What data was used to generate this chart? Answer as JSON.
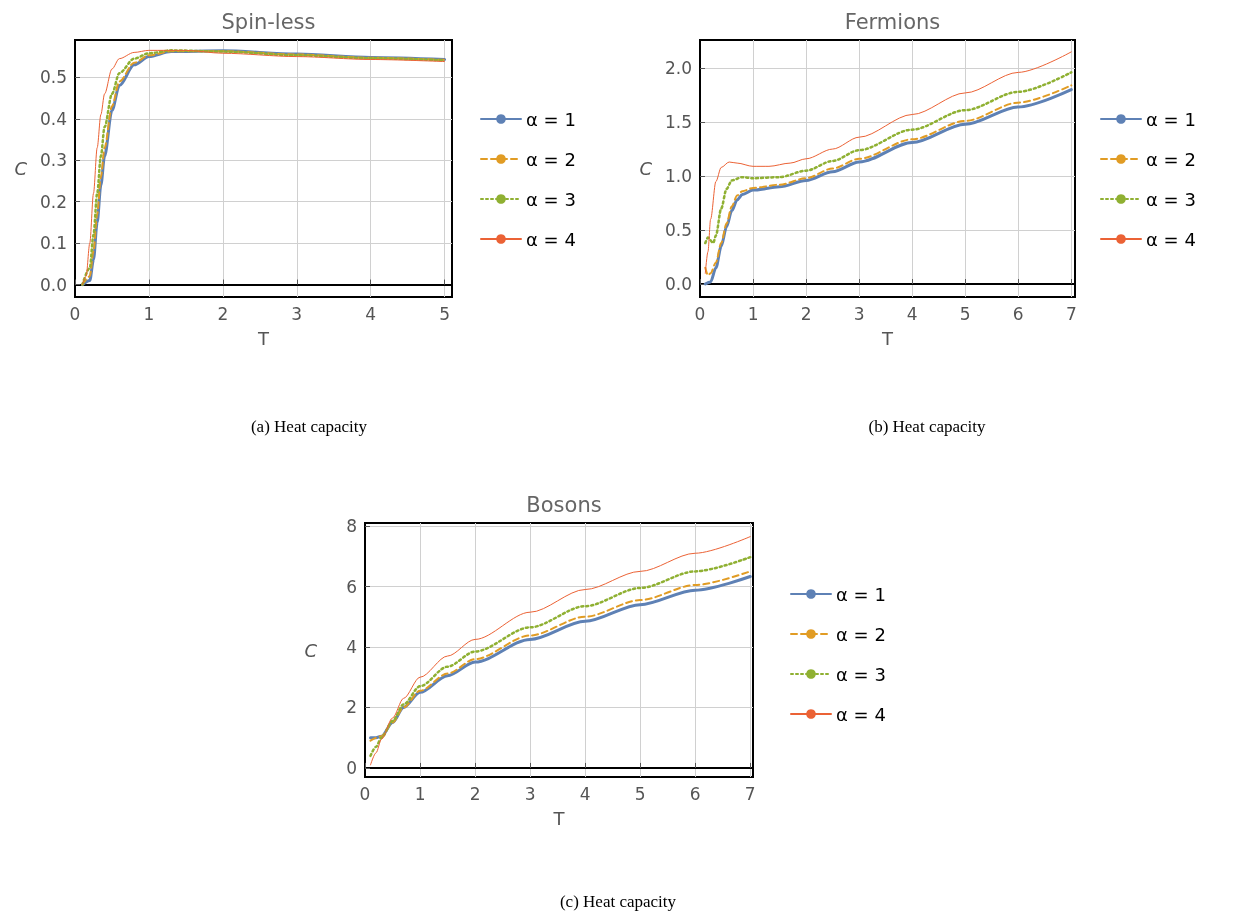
{
  "chart_data": [
    {
      "type": "line",
      "title": "Spin-less",
      "xlabel": "T",
      "ylabel": "C",
      "annotations": [
        "(a) Heat capacity"
      ],
      "xlim": [
        0,
        5.1
      ],
      "ylim": [
        -0.03,
        0.59
      ],
      "xticks": [
        0,
        1,
        2,
        3,
        4,
        5
      ],
      "yticks": [
        {
          "value": 0,
          "label": "0.0"
        },
        0.1,
        0.2,
        0.3,
        0.4,
        0.5
      ],
      "grid": true,
      "legend": "right",
      "marker": "none",
      "series": [
        {
          "name": "α = 1",
          "color": "#5e81b5",
          "line_style": "solid",
          "x": [
            0.1,
            0.2,
            0.25,
            0.3,
            0.35,
            0.4,
            0.5,
            0.6,
            0.8,
            1,
            1.3,
            2,
            3,
            4,
            5
          ],
          "values": [
            0,
            0.01,
            0.06,
            0.15,
            0.24,
            0.31,
            0.42,
            0.48,
            0.53,
            0.55,
            0.562,
            0.564,
            0.556,
            0.548,
            0.543
          ]
        },
        {
          "name": "α = 2",
          "color": "#e19c24",
          "line_style": "dashed",
          "x": [
            0.1,
            0.2,
            0.25,
            0.3,
            0.35,
            0.4,
            0.5,
            0.6,
            0.8,
            1,
            1.3,
            2,
            3,
            4,
            5
          ],
          "values": [
            0,
            0.02,
            0.08,
            0.17,
            0.26,
            0.33,
            0.43,
            0.49,
            0.535,
            0.553,
            0.563,
            0.563,
            0.555,
            0.547,
            0.542
          ]
        },
        {
          "name": "α = 3",
          "color": "#8fb032",
          "line_style": "dotted",
          "x": [
            0.1,
            0.2,
            0.25,
            0.3,
            0.35,
            0.4,
            0.5,
            0.6,
            0.8,
            1,
            1.3,
            2,
            3,
            4,
            5
          ],
          "values": [
            0,
            0.04,
            0.12,
            0.22,
            0.31,
            0.38,
            0.46,
            0.51,
            0.545,
            0.558,
            0.565,
            0.562,
            0.553,
            0.546,
            0.541
          ]
        },
        {
          "name": "α = 4",
          "color": "#eb6235",
          "line_style": "solid",
          "x": [
            0.1,
            0.15,
            0.2,
            0.25,
            0.3,
            0.35,
            0.4,
            0.5,
            0.6,
            0.8,
            1,
            1.5,
            2,
            3,
            4,
            5
          ],
          "values": [
            0,
            0.02,
            0.1,
            0.22,
            0.33,
            0.41,
            0.46,
            0.52,
            0.545,
            0.56,
            0.565,
            0.565,
            0.558,
            0.55,
            0.543,
            0.538
          ]
        }
      ]
    },
    {
      "type": "line",
      "title": "Fermions",
      "xlabel": "T",
      "ylabel": "C",
      "annotations": [
        "(b) Heat capacity"
      ],
      "xlim": [
        0,
        7.07
      ],
      "ylim": [
        -0.12,
        2.26
      ],
      "xticks": [
        0,
        1,
        2,
        3,
        4,
        5,
        6,
        7
      ],
      "yticks": [
        {
          "value": 0,
          "label": "0.0"
        },
        0.5,
        {
          "value": 1,
          "label": "1.0"
        },
        1.5,
        {
          "value": 2,
          "label": "2.0"
        }
      ],
      "grid": true,
      "legend": "right",
      "marker": "none",
      "series": [
        {
          "name": "α = 1",
          "color": "#5e81b5",
          "line_style": "solid",
          "x": [
            0.1,
            0.2,
            0.3,
            0.4,
            0.5,
            0.6,
            0.7,
            0.8,
            1,
            1.5,
            2,
            2.5,
            3,
            4,
            5,
            6,
            7
          ],
          "values": [
            0,
            0.02,
            0.15,
            0.35,
            0.53,
            0.68,
            0.78,
            0.83,
            0.87,
            0.9,
            0.96,
            1.04,
            1.13,
            1.31,
            1.48,
            1.64,
            1.8
          ]
        },
        {
          "name": "α = 2",
          "color": "#e19c24",
          "line_style": "dashed",
          "x": [
            0.1,
            0.15,
            0.2,
            0.3,
            0.4,
            0.5,
            0.6,
            0.7,
            0.8,
            1,
            1.5,
            2,
            2.5,
            3,
            4,
            5,
            6,
            7
          ],
          "values": [
            0.15,
            0.08,
            0.1,
            0.2,
            0.38,
            0.56,
            0.72,
            0.82,
            0.86,
            0.89,
            0.92,
            0.98,
            1.07,
            1.16,
            1.34,
            1.51,
            1.68,
            1.84
          ]
        },
        {
          "name": "α = 3",
          "color": "#8fb032",
          "line_style": "dotted",
          "x": [
            0.1,
            0.15,
            0.25,
            0.3,
            0.4,
            0.5,
            0.6,
            0.8,
            1,
            1.5,
            2,
            2.5,
            3,
            4,
            5,
            6,
            7
          ],
          "values": [
            0.38,
            0.43,
            0.38,
            0.45,
            0.7,
            0.88,
            0.96,
            0.99,
            0.98,
            0.99,
            1.05,
            1.14,
            1.24,
            1.43,
            1.61,
            1.78,
            1.96
          ]
        },
        {
          "name": "α = 4",
          "color": "#eb6235",
          "line_style": "solid",
          "x": [
            0.1,
            0.15,
            0.2,
            0.3,
            0.4,
            0.55,
            0.7,
            1,
            1.3,
            1.7,
            2,
            2.5,
            3,
            4,
            5,
            6,
            7
          ],
          "values": [
            0.1,
            0.3,
            0.6,
            0.95,
            1.08,
            1.13,
            1.12,
            1.09,
            1.09,
            1.12,
            1.16,
            1.25,
            1.36,
            1.57,
            1.77,
            1.96,
            2.15
          ]
        }
      ]
    },
    {
      "type": "line",
      "title": "Bosons",
      "xlabel": "T",
      "ylabel": "C",
      "annotations": [
        "(c) Heat capacity"
      ],
      "xlim": [
        0,
        7.05
      ],
      "ylim": [
        -0.3,
        8.1
      ],
      "xticks": [
        0,
        1,
        2,
        3,
        4,
        5,
        6,
        7
      ],
      "yticks": [
        0,
        2,
        4,
        6,
        8
      ],
      "grid": true,
      "legend": "right",
      "marker": "none",
      "series": [
        {
          "name": "α = 1",
          "color": "#5e81b5",
          "line_style": "solid",
          "x": [
            0.1,
            0.2,
            0.3,
            0.5,
            0.7,
            1,
            1.5,
            2,
            3,
            4,
            5,
            6,
            7
          ],
          "values": [
            1.0,
            1.0,
            1.05,
            1.5,
            2.0,
            2.5,
            3.05,
            3.5,
            4.25,
            4.85,
            5.4,
            5.88,
            6.33
          ]
        },
        {
          "name": "α = 2",
          "color": "#e19c24",
          "line_style": "dashed",
          "x": [
            0.1,
            0.3,
            0.5,
            0.7,
            1,
            1.5,
            2,
            3,
            4,
            5,
            6,
            7
          ],
          "values": [
            0.9,
            1.05,
            1.5,
            2.0,
            2.55,
            3.12,
            3.6,
            4.38,
            5.0,
            5.55,
            6.05,
            6.5
          ]
        },
        {
          "name": "α = 3",
          "color": "#8fb032",
          "line_style": "dotted",
          "x": [
            0.1,
            0.2,
            0.3,
            0.5,
            0.7,
            1,
            1.5,
            2,
            3,
            4,
            5,
            6,
            7
          ],
          "values": [
            0.4,
            0.7,
            1.0,
            1.55,
            2.1,
            2.7,
            3.35,
            3.85,
            4.65,
            5.35,
            5.95,
            6.5,
            6.97
          ]
        },
        {
          "name": "α = 4",
          "color": "#eb6235",
          "line_style": "solid",
          "x": [
            0.1,
            0.2,
            0.3,
            0.5,
            0.7,
            1,
            1.5,
            2,
            3,
            4,
            5,
            6,
            7
          ],
          "values": [
            0.1,
            0.5,
            0.95,
            1.65,
            2.3,
            3.0,
            3.7,
            4.25,
            5.15,
            5.9,
            6.5,
            7.1,
            7.65
          ]
        }
      ]
    }
  ]
}
